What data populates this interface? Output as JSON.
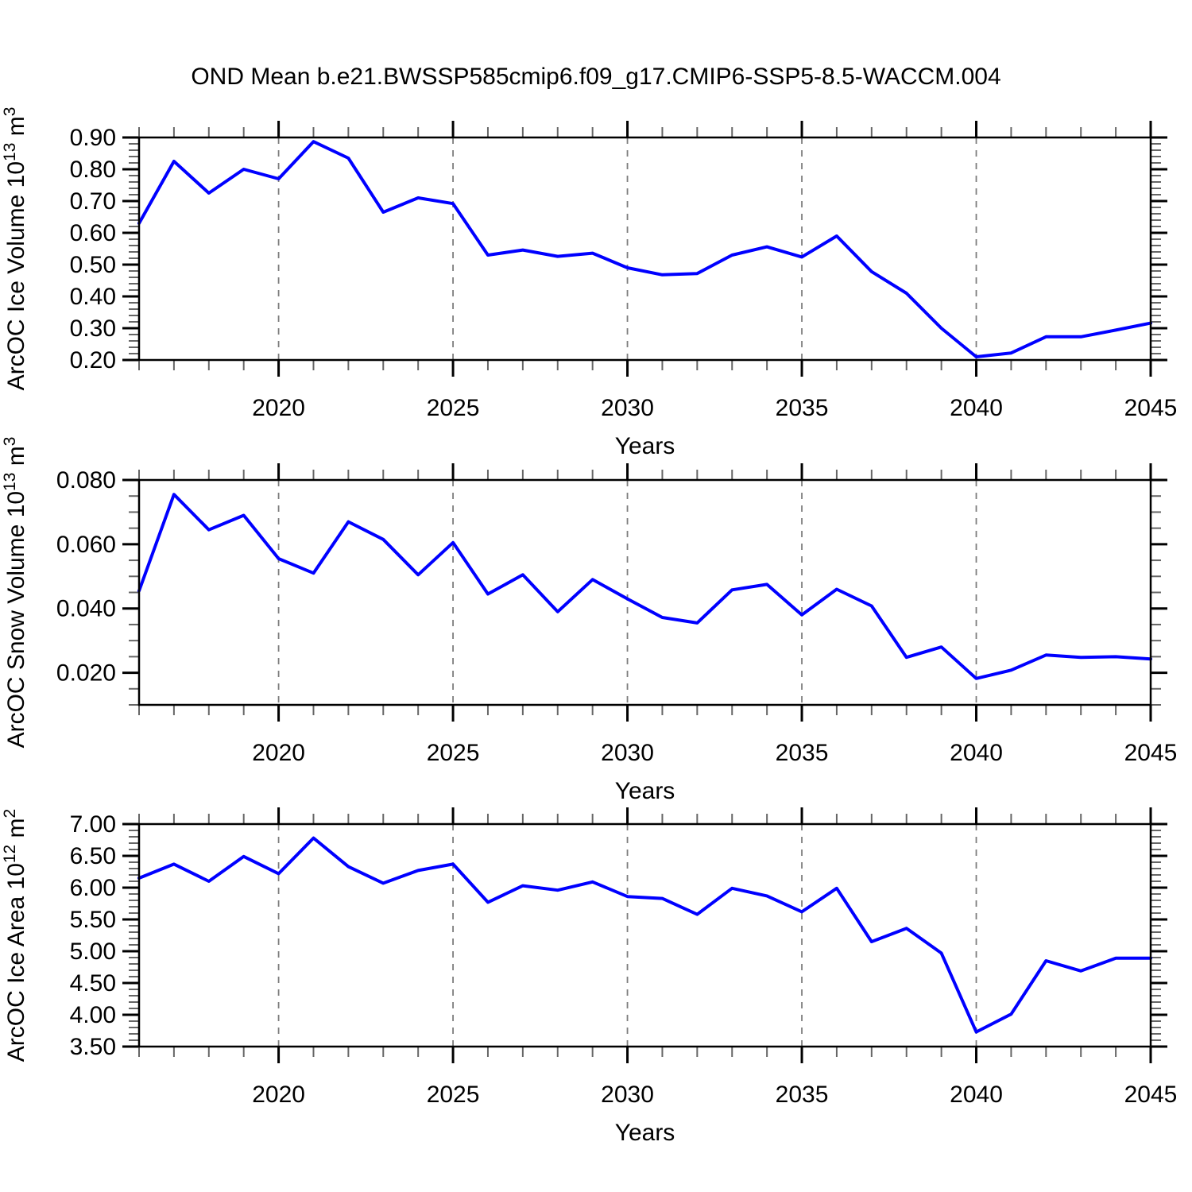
{
  "title": "OND Mean b.e21.BWSSP585cmip6.f09_g17.CMIP6-SSP5-8.5-WACCM.004",
  "figure": {
    "line_color": "#0000ff",
    "grid_color": "#7d7d7d",
    "frame_color": "#000000",
    "minor_tick_color": "#666666",
    "major_tick_color": "#000000",
    "text_color": "#000000"
  },
  "chart_data": [
    {
      "type": "line",
      "name": "arcoc-ice-volume",
      "ylabel_plain": "ArcOC Ice Volume 10^13 m^3",
      "ylabel_parts": [
        {
          "t": "ArcOC Ice Volume 10"
        },
        {
          "t": "13",
          "sup": true
        },
        {
          "t": " m"
        },
        {
          "t": "3",
          "sup": true
        }
      ],
      "xlabel": "Years",
      "x": [
        2016,
        2017,
        2018,
        2019,
        2020,
        2021,
        2022,
        2023,
        2024,
        2025,
        2026,
        2027,
        2028,
        2029,
        2030,
        2031,
        2032,
        2033,
        2034,
        2035,
        2036,
        2037,
        2038,
        2039,
        2040,
        2041,
        2042,
        2043,
        2044,
        2045
      ],
      "values": [
        0.63,
        0.825,
        0.725,
        0.8,
        0.77,
        0.887,
        0.835,
        0.665,
        0.71,
        0.692,
        0.53,
        0.546,
        0.526,
        0.536,
        0.49,
        0.468,
        0.472,
        0.53,
        0.556,
        0.524,
        0.59,
        0.478,
        0.41,
        0.3,
        0.21,
        0.222,
        0.273,
        0.273,
        0.294,
        0.316
      ],
      "ylim": [
        0.2,
        0.9
      ],
      "yticks": [
        0.2,
        0.3,
        0.4,
        0.5,
        0.6,
        0.7,
        0.8,
        0.9
      ],
      "ytick_labels": [
        "0.20",
        "0.30",
        "0.40",
        "0.50",
        "0.60",
        "0.70",
        "0.80",
        "0.90"
      ],
      "yminor_start": 0.2,
      "yminor_step": 0.02,
      "yminor_count": 36,
      "xlim": [
        2016,
        2045
      ],
      "xticks": [
        2020,
        2025,
        2030,
        2035,
        2040,
        2045
      ],
      "xtick_labels": [
        "2020",
        "2025",
        "2030",
        "2035",
        "2040",
        "2045"
      ],
      "gridline_years": [
        2020,
        2025,
        2030,
        2035,
        2040
      ],
      "grid_on": true,
      "legend": "none"
    },
    {
      "type": "line",
      "name": "arcoc-snow-volume",
      "ylabel_plain": "ArcOC Snow Volume 10^13 m^3",
      "ylabel_parts": [
        {
          "t": "ArcOC Snow Volume 10"
        },
        {
          "t": "13",
          "sup": true
        },
        {
          "t": " m"
        },
        {
          "t": "3",
          "sup": true
        }
      ],
      "xlabel": "Years",
      "x": [
        2016,
        2017,
        2018,
        2019,
        2020,
        2021,
        2022,
        2023,
        2024,
        2025,
        2026,
        2027,
        2028,
        2029,
        2030,
        2031,
        2032,
        2033,
        2034,
        2035,
        2036,
        2037,
        2038,
        2039,
        2040,
        2041,
        2042,
        2043,
        2044,
        2045
      ],
      "values": [
        0.0455,
        0.0755,
        0.0645,
        0.069,
        0.0555,
        0.051,
        0.067,
        0.0615,
        0.0505,
        0.0605,
        0.0445,
        0.0505,
        0.039,
        0.049,
        0.043,
        0.0372,
        0.0355,
        0.0458,
        0.0475,
        0.038,
        0.046,
        0.0408,
        0.0248,
        0.028,
        0.0182,
        0.0208,
        0.0255,
        0.0248,
        0.025,
        0.0243
      ],
      "ylim": [
        0.01,
        0.08
      ],
      "yticks": [
        0.02,
        0.04,
        0.06,
        0.08
      ],
      "ytick_labels": [
        "0.020",
        "0.040",
        "0.060",
        "0.080"
      ],
      "yminor_start": 0.01,
      "yminor_step": 0.005,
      "yminor_count": 15,
      "xlim": [
        2016,
        2045
      ],
      "xticks": [
        2020,
        2025,
        2030,
        2035,
        2040,
        2045
      ],
      "xtick_labels": [
        "2020",
        "2025",
        "2030",
        "2035",
        "2040",
        "2045"
      ],
      "gridline_years": [
        2020,
        2025,
        2030,
        2035,
        2040
      ],
      "grid_on": true,
      "legend": "none"
    },
    {
      "type": "line",
      "name": "arcoc-ice-area",
      "ylabel_plain": "ArcOC Ice Area 10^12 m^2",
      "ylabel_parts": [
        {
          "t": "ArcOC Ice Area 10"
        },
        {
          "t": "12",
          "sup": true
        },
        {
          "t": " m"
        },
        {
          "t": "2",
          "sup": true
        }
      ],
      "xlabel": "Years",
      "x": [
        2016,
        2017,
        2018,
        2019,
        2020,
        2021,
        2022,
        2023,
        2024,
        2025,
        2026,
        2027,
        2028,
        2029,
        2030,
        2031,
        2032,
        2033,
        2034,
        2035,
        2036,
        2037,
        2038,
        2039,
        2040,
        2041,
        2042,
        2043,
        2044,
        2045
      ],
      "values": [
        6.15,
        6.37,
        6.1,
        6.49,
        6.22,
        6.78,
        6.33,
        6.07,
        6.27,
        6.37,
        5.77,
        6.03,
        5.96,
        6.09,
        5.86,
        5.83,
        5.58,
        5.99,
        5.87,
        5.62,
        5.99,
        5.15,
        5.36,
        4.97,
        3.73,
        4.01,
        4.85,
        4.69,
        4.89,
        4.89
      ],
      "ylim": [
        3.5,
        7.0
      ],
      "yticks": [
        3.5,
        4.0,
        4.5,
        5.0,
        5.5,
        6.0,
        6.5,
        7.0
      ],
      "ytick_labels": [
        "3.50",
        "4.00",
        "4.50",
        "5.00",
        "5.50",
        "6.00",
        "6.50",
        "7.00"
      ],
      "yminor_start": 3.5,
      "yminor_step": 0.1,
      "yminor_count": 36,
      "xlim": [
        2016,
        2045
      ],
      "xticks": [
        2020,
        2025,
        2030,
        2035,
        2040,
        2045
      ],
      "xtick_labels": [
        "2020",
        "2025",
        "2030",
        "2035",
        "2040",
        "2045"
      ],
      "gridline_years": [
        2020,
        2025,
        2030,
        2035,
        2040
      ],
      "grid_on": true,
      "legend": "none"
    }
  ]
}
